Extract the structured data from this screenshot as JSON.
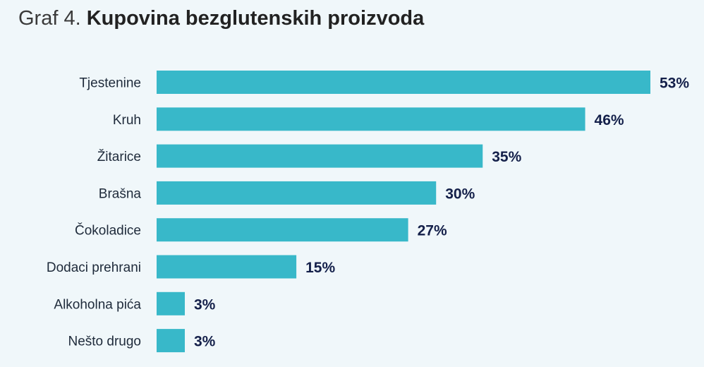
{
  "title": {
    "prefix": "Graf 4.",
    "main": "Kupovina bezglutenskih proizvoda"
  },
  "colors": {
    "bar": "#38b8c9",
    "background": "#f0f7fa",
    "value_text": "#14204a"
  },
  "chart_data": {
    "type": "bar",
    "orientation": "horizontal",
    "title": "Graf 4. Kupovina bezglutenskih proizvoda",
    "categories": [
      "Tjestenine",
      "Kruh",
      "Žitarice",
      "Brašna",
      "Čokoladice",
      "Dodaci prehrani",
      "Alkoholna pića",
      "Nešto drugo"
    ],
    "values": [
      53,
      46,
      35,
      30,
      27,
      15,
      3,
      3
    ],
    "value_labels": [
      "53%",
      "46%",
      "35%",
      "30%",
      "27%",
      "15%",
      "3%",
      "3%"
    ],
    "unit": "%",
    "xlim": [
      0,
      53
    ],
    "grid": false,
    "legend": "none"
  }
}
